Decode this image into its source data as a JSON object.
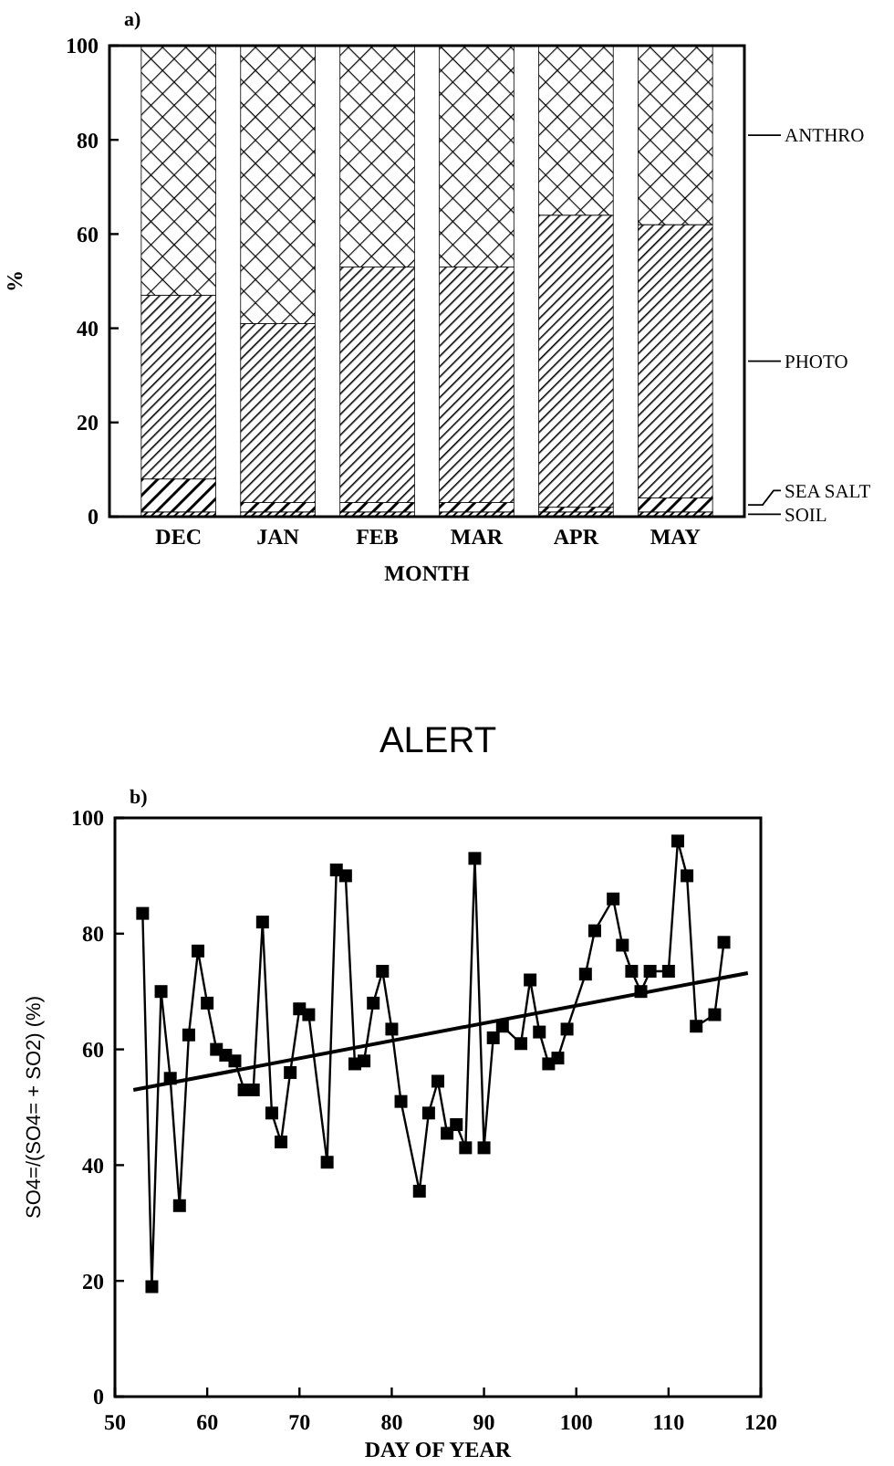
{
  "chart_data": [
    {
      "type": "bar",
      "stacked": true,
      "annotations": [
        "a)"
      ],
      "ylabel": "%",
      "xlabel": "MONTH",
      "categories": [
        "DEC",
        "JAN",
        "FEB",
        "MAR",
        "APR",
        "MAY"
      ],
      "ylim": [
        0,
        100
      ],
      "yticks": [
        0,
        20,
        40,
        60,
        80,
        100
      ],
      "legend": false,
      "series": [
        {
          "name": "SOIL",
          "color": "#000000",
          "values": [
            1,
            1,
            1,
            1,
            1,
            1
          ]
        },
        {
          "name": "SEA SALT",
          "color": "#000000",
          "values": [
            7,
            2,
            2,
            2,
            1,
            3
          ]
        },
        {
          "name": "PHOTO",
          "color": "#000000",
          "values": [
            39,
            38,
            50,
            50,
            62,
            58
          ]
        },
        {
          "name": "ANTHRO",
          "color": "#000000",
          "values": [
            53,
            59,
            47,
            47,
            36,
            38
          ]
        }
      ]
    },
    {
      "type": "line",
      "title": "ALERT",
      "annotations": [
        "b)"
      ],
      "xlabel": "DAY OF YEAR",
      "ylabel": "SO4=/(SO4= + SO2) (%)",
      "xlim": [
        50,
        120
      ],
      "xticks": [
        50,
        60,
        70,
        80,
        90,
        100,
        110,
        120
      ],
      "ylim": [
        0,
        100
      ],
      "yticks": [
        0,
        20,
        40,
        60,
        80,
        100
      ],
      "series": [
        {
          "color": "#000000",
          "marker": "square",
          "x": [
            53,
            54,
            55,
            56,
            57,
            58,
            59,
            60,
            61,
            62,
            63,
            64,
            65,
            66,
            67,
            68,
            69,
            70,
            71,
            73,
            74,
            75,
            76,
            77,
            78,
            79,
            80,
            81,
            83,
            84,
            85,
            86,
            87,
            88,
            89,
            90,
            91,
            92,
            94,
            95,
            96,
            97,
            98,
            99,
            101,
            102,
            104,
            105,
            106,
            107,
            108,
            110,
            111,
            112,
            113,
            115,
            116
          ],
          "values": [
            83.5,
            19,
            70,
            55,
            33,
            62.5,
            77,
            68,
            60,
            59,
            58,
            53,
            53,
            82,
            49,
            44,
            56,
            67,
            66,
            40.5,
            91,
            90,
            57.5,
            58,
            68,
            73.5,
            63.5,
            51,
            35.5,
            49,
            54.5,
            45.5,
            47,
            43,
            93,
            43,
            62,
            64,
            61,
            72,
            63,
            57.5,
            58.5,
            63.5,
            73,
            80.5,
            86,
            78,
            73.5,
            70,
            73.5,
            73.5,
            96,
            90,
            64,
            66,
            78.5
          ]
        },
        {
          "type": "line",
          "color": "#000000",
          "marker": "none",
          "x": [
            52,
            118.6
          ],
          "values": [
            53,
            73.2
          ]
        }
      ]
    }
  ]
}
